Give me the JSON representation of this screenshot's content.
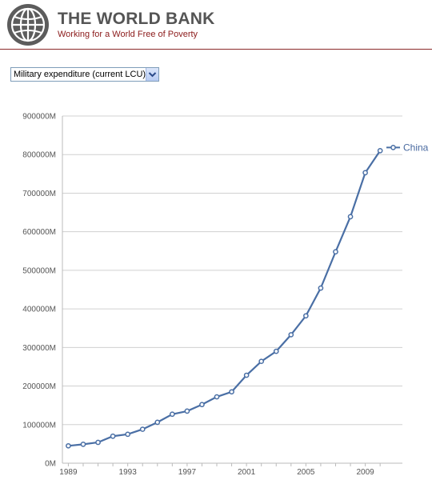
{
  "header": {
    "title": "THE WORLD BANK",
    "tagline": "Working for a World Free of Poverty",
    "logo_icon": "globe-icon"
  },
  "indicator": {
    "selected": "Military expenditure (current LCU)",
    "dropdown_icon": "chevron-down-icon"
  },
  "colors": {
    "brand_red": "#8b1a1a",
    "series": "#4a6fa5",
    "grid": "#d0d0d0"
  },
  "chart_data": {
    "type": "line",
    "title": "",
    "xlabel": "",
    "ylabel": "",
    "x": [
      1989,
      1990,
      1991,
      1992,
      1993,
      1994,
      1995,
      1996,
      1997,
      1998,
      1999,
      2000,
      2001,
      2002,
      2003,
      2004,
      2005,
      2006,
      2007,
      2008,
      2009,
      2010
    ],
    "series": [
      {
        "name": "China",
        "values": [
          45000,
          49000,
          54000,
          70000,
          75000,
          88000,
          106000,
          127000,
          135000,
          152000,
          172000,
          185000,
          228000,
          264000,
          290000,
          333000,
          382000,
          454000,
          548000,
          639000,
          753000,
          810000
        ]
      }
    ],
    "ylim": [
      0,
      900000
    ],
    "yticks": [
      0,
      100000,
      200000,
      300000,
      400000,
      500000,
      600000,
      700000,
      800000,
      900000
    ],
    "ytick_labels": [
      "0M",
      "100000M",
      "200000M",
      "300000M",
      "400000M",
      "500000M",
      "600000M",
      "700000M",
      "800000M",
      "900000M"
    ],
    "xticks": [
      1989,
      1993,
      1997,
      2001,
      2005,
      2009
    ],
    "xtick_labels": [
      "1989",
      "1993",
      "1997",
      "2001",
      "2005",
      "2009"
    ],
    "grid": true,
    "legend": "right"
  }
}
